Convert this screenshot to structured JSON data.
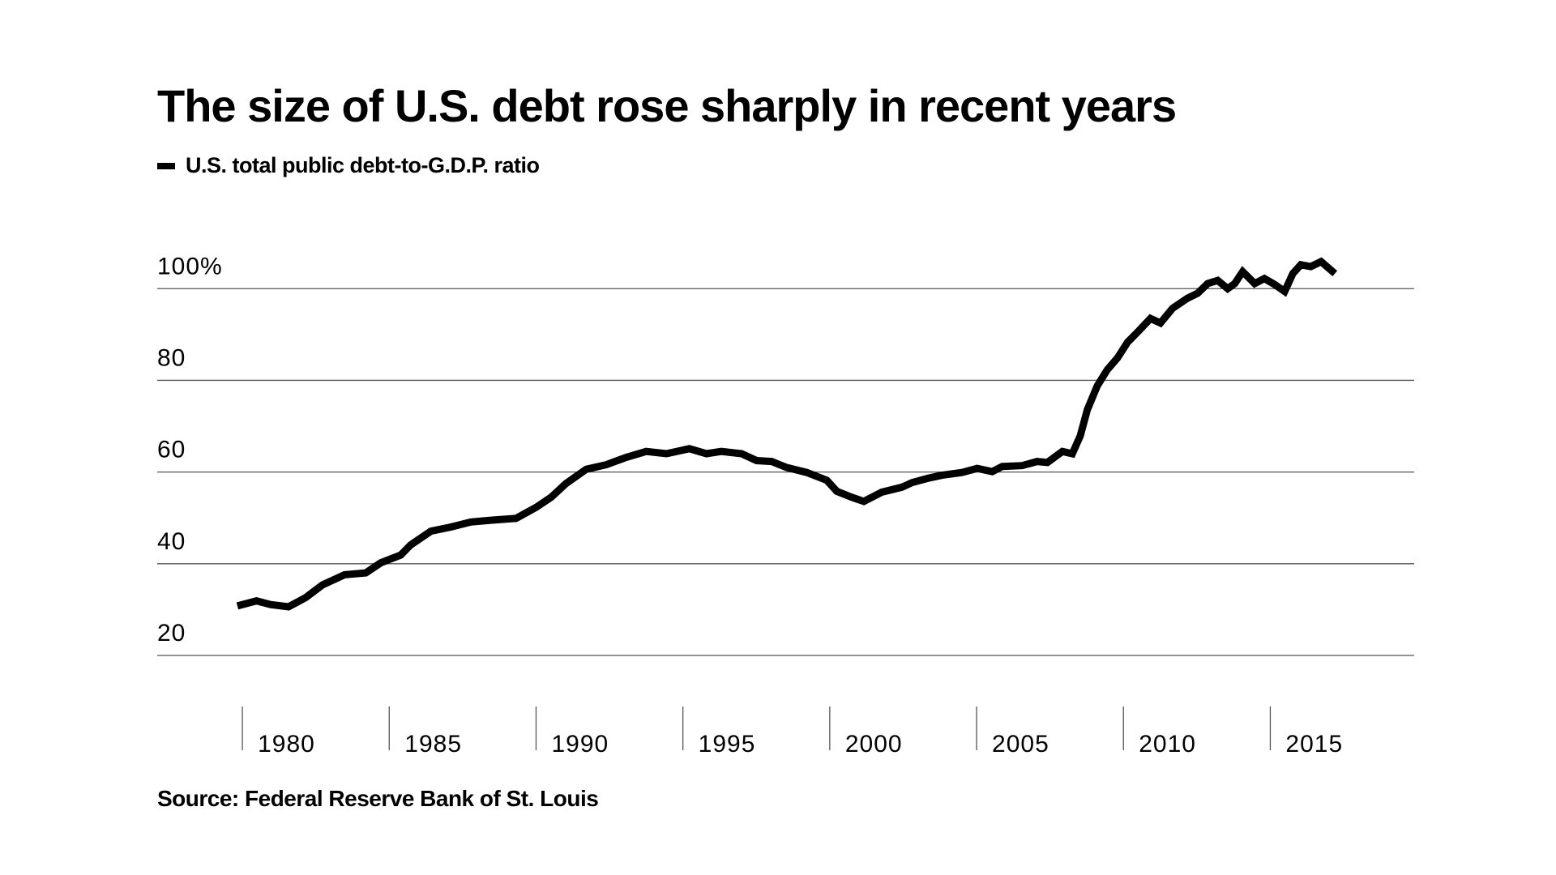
{
  "chart_data": {
    "type": "line",
    "title": "The size of U.S. debt rose sharply in recent years",
    "source": "Source: Federal Reserve Bank of St. Louis",
    "series": [
      {
        "name": "U.S. total public debt-to-G.D.P. ratio",
        "color": "#000000",
        "x": [
          1979.83,
          1980.48,
          1980.96,
          1981.57,
          1982.15,
          1982.73,
          1983.48,
          1984.2,
          1984.71,
          1985.39,
          1985.73,
          1986.42,
          1987.1,
          1987.78,
          1988.46,
          1989.32,
          1990.0,
          1990.51,
          1991.02,
          1991.71,
          1992.39,
          1993.07,
          1993.75,
          1994.44,
          1995.22,
          1995.8,
          1996.31,
          1997.0,
          1997.51,
          1998.02,
          1998.53,
          1999.22,
          1999.9,
          2000.24,
          2000.75,
          2001.16,
          2001.77,
          2002.46,
          2002.8,
          2003.31,
          2003.82,
          2004.5,
          2005.02,
          2005.53,
          2005.87,
          2006.55,
          2007.06,
          2007.41,
          2007.92,
          2008.26,
          2008.53,
          2008.77,
          2009.11,
          2009.45,
          2009.8,
          2010.14,
          2010.48,
          2010.92,
          2011.26,
          2011.67,
          2012.18,
          2012.53,
          2012.87,
          2013.21,
          2013.55,
          2013.79,
          2014.06,
          2014.47,
          2014.8,
          2015.15,
          2015.49,
          2015.77,
          2016.04,
          2016.38,
          2016.73,
          2017.2
        ],
        "values": [
          30.8,
          31.9,
          31.1,
          30.6,
          32.6,
          35.4,
          37.6,
          38.0,
          40.2,
          41.9,
          44.1,
          47.1,
          48.0,
          49.1,
          49.5,
          49.9,
          52.3,
          54.5,
          57.5,
          60.6,
          61.6,
          63.2,
          64.5,
          64.0,
          65.1,
          64.0,
          64.5,
          64.0,
          62.5,
          62.3,
          61.0,
          59.9,
          58.2,
          55.8,
          54.5,
          53.6,
          55.6,
          56.7,
          57.7,
          58.6,
          59.3,
          59.9,
          60.8,
          60.1,
          61.2,
          61.4,
          62.3,
          62.1,
          64.5,
          64.0,
          67.9,
          73.6,
          78.8,
          82.3,
          84.9,
          88.3,
          90.5,
          93.5,
          92.5,
          95.7,
          97.9,
          99.0,
          101.1,
          101.8,
          100.0,
          101.1,
          103.7,
          101.1,
          102.2,
          100.9,
          99.4,
          103.3,
          105.2,
          104.8,
          105.9,
          103.3
        ]
      }
    ],
    "xlim": [
      1977.1,
      2019.9
    ],
    "xticks": [
      1980,
      1985,
      1990,
      1995,
      2000,
      2005,
      2010,
      2015
    ],
    "ylim": [
      20,
      108
    ],
    "yticks": [
      20,
      40,
      60,
      80,
      {
        "value": 100,
        "label": "100%"
      }
    ],
    "grid": true
  }
}
